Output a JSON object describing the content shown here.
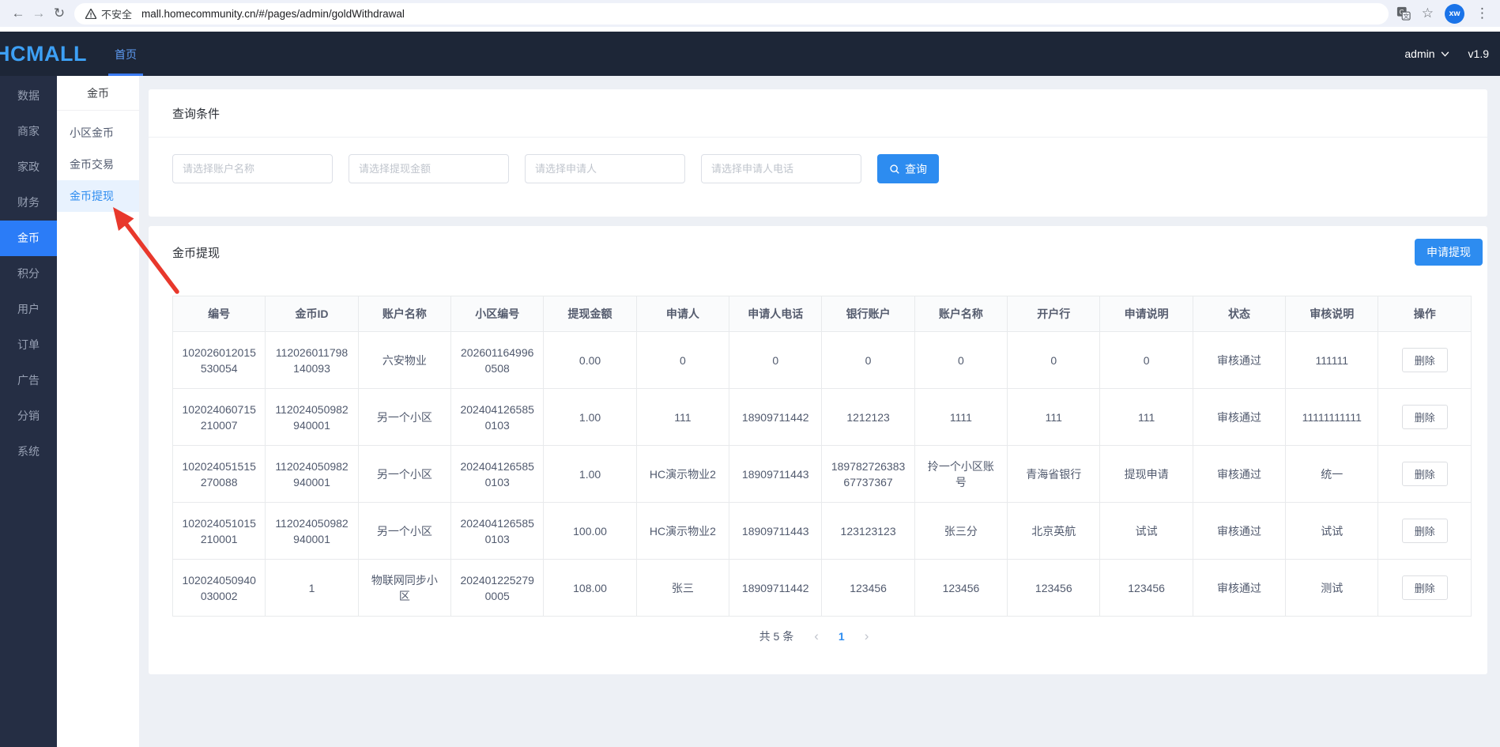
{
  "browser": {
    "security_label": "不安全",
    "url": "mall.homecommunity.cn/#/pages/admin/goldWithdrawal",
    "avatar": "xw"
  },
  "header": {
    "logo": "HCMALL",
    "home_tab": "首页",
    "user": "admin",
    "version": "v1.9"
  },
  "sidebar": {
    "items": [
      "数据",
      "商家",
      "家政",
      "财务",
      "金币",
      "积分",
      "用户",
      "订单",
      "广告",
      "分销",
      "系统"
    ],
    "active_index": 4
  },
  "submenu": {
    "title": "金币",
    "items": [
      "小区金币",
      "金币交易",
      "金币提现"
    ],
    "active_index": 2
  },
  "query": {
    "title": "查询条件",
    "placeholders": [
      "请选择账户名称",
      "请选择提现金额",
      "请选择申请人",
      "请选择申请人电话"
    ],
    "search_label": "查询"
  },
  "withdraw": {
    "title": "金币提现",
    "apply_button": "申请提现",
    "columns": [
      "编号",
      "金币ID",
      "账户名称",
      "小区编号",
      "提现金额",
      "申请人",
      "申请人电话",
      "银行账户",
      "账户名称",
      "开户行",
      "申请说明",
      "状态",
      "审核说明",
      "操作"
    ],
    "delete_label": "删除",
    "rows": [
      [
        "102026012015530054",
        "112026011798140093",
        "六安物业",
        "2026011649960508",
        "0.00",
        "0",
        "0",
        "0",
        "0",
        "0",
        "0",
        "审核通过",
        "111111"
      ],
      [
        "102024060715210007",
        "112024050982940001",
        "另一个小区",
        "2024041265850103",
        "1.00",
        "111",
        "18909711442",
        "1212123",
        "1111",
        "111",
        "111",
        "审核通过",
        "11111111111"
      ],
      [
        "102024051515270088",
        "112024050982940001",
        "另一个小区",
        "2024041265850103",
        "1.00",
        "HC演示物业2",
        "18909711443",
        "18978272638367737367",
        "拎一个小区账号",
        "青海省银行",
        "提现申请",
        "审核通过",
        "统一"
      ],
      [
        "102024051015210001",
        "112024050982940001",
        "另一个小区",
        "2024041265850103",
        "100.00",
        "HC演示物业2",
        "18909711443",
        "123123123",
        "张三分",
        "北京英航",
        "试试",
        "审核通过",
        "试试"
      ],
      [
        "102024050940030002",
        "1",
        "物联网同步小区",
        "2024012252790005",
        "108.00",
        "张三",
        "18909711442",
        "123456",
        "123456",
        "123456",
        "123456",
        "审核通过",
        "测试"
      ]
    ]
  },
  "pagination": {
    "total": "共 5 条",
    "page": "1"
  }
}
